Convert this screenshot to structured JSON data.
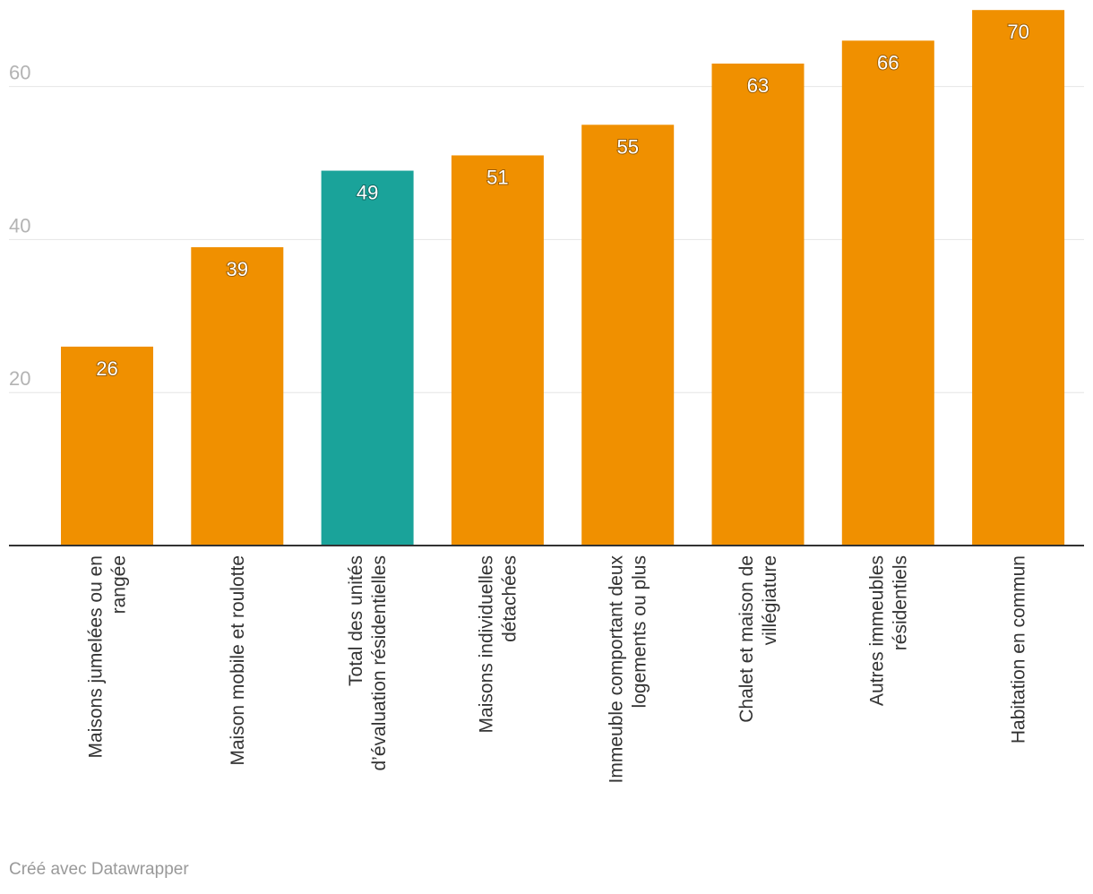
{
  "chart_data": {
    "type": "bar",
    "categories": [
      [
        "Maisons jumelées ou en",
        "rangée"
      ],
      [
        "Maison mobile et roulotte"
      ],
      [
        "Total des unités",
        "d’évaluation résidentielles"
      ],
      [
        "Maisons individuelles",
        "détachées"
      ],
      [
        "Immeuble comportant deux",
        "logements ou plus"
      ],
      [
        "Chalet et maison de",
        "villégiature"
      ],
      [
        "Autres immeubles",
        "résidentiels"
      ],
      [
        "Habitation en commun"
      ]
    ],
    "values": [
      26,
      39,
      49,
      51,
      55,
      63,
      66,
      70
    ],
    "highlight_index": 2,
    "colors": {
      "default": "#f09000",
      "highlight": "#1aa39a"
    },
    "yticks": [
      20,
      40,
      60
    ],
    "ylim": [
      0,
      70
    ],
    "grid": true,
    "xlabel": "",
    "ylabel": ""
  },
  "footer": {
    "credit": "Créé avec Datawrapper"
  }
}
